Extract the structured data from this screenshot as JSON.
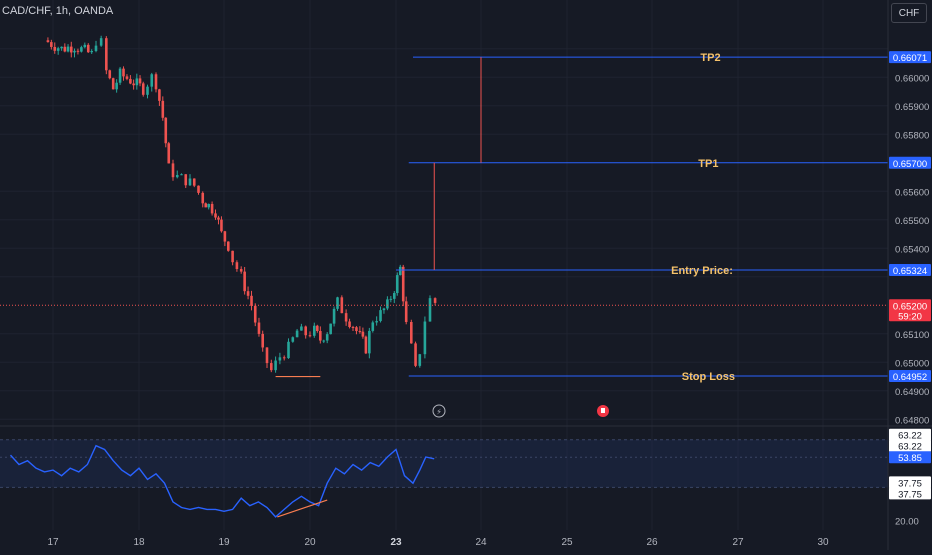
{
  "header": {
    "symbol": "CAD/CHF, 1h, OANDA",
    "currency_button": "CHF"
  },
  "colors": {
    "background": "#161a25",
    "bull": "#26a69a",
    "bear": "#ef5350",
    "level_line": "#2962ff",
    "level_text": "#f5c26b",
    "projection": "#ef5350",
    "price_tag_current": "#f23645",
    "rsi_line": "#2962ff",
    "rsi_band": "#1e2a4a",
    "axis_text": "#b2b5be"
  },
  "chart_data": [
    {
      "type": "candlestick",
      "title": "",
      "y_ticks": [
        "0.66100",
        "0.66000",
        "0.65900",
        "0.65800",
        "0.65600",
        "0.65500",
        "0.65400",
        "0.65300",
        "0.65100",
        "0.65000",
        "0.64900",
        "0.64800"
      ],
      "x_ticks": [
        "17",
        "18",
        "19",
        "20",
        "23",
        "24",
        "25",
        "26",
        "27",
        "30"
      ],
      "ylim": [
        0.6478,
        0.6618
      ],
      "close_path": [
        [
          16.9,
          0.6613
        ],
        [
          17.1,
          0.661
        ],
        [
          17.25,
          0.6611
        ],
        [
          17.45,
          0.6608
        ],
        [
          17.5,
          0.6613
        ],
        [
          17.56,
          0.6612
        ],
        [
          17.62,
          0.6602
        ],
        [
          17.7,
          0.6596
        ],
        [
          17.78,
          0.6601
        ],
        [
          17.9,
          0.6599
        ],
        [
          18.05,
          0.6596
        ],
        [
          18.15,
          0.66
        ],
        [
          18.2,
          0.6598
        ],
        [
          18.28,
          0.6586
        ],
        [
          18.35,
          0.6568
        ],
        [
          18.45,
          0.6565
        ],
        [
          18.55,
          0.6564
        ],
        [
          18.65,
          0.6562
        ],
        [
          18.75,
          0.6557
        ],
        [
          18.82,
          0.6555
        ],
        [
          18.9,
          0.6553
        ],
        [
          18.97,
          0.6545
        ],
        [
          19.05,
          0.6541
        ],
        [
          19.1,
          0.6536
        ],
        [
          19.2,
          0.653
        ],
        [
          19.32,
          0.652
        ],
        [
          19.45,
          0.6503
        ],
        [
          19.55,
          0.6497
        ],
        [
          19.65,
          0.6502
        ],
        [
          19.75,
          0.6505
        ],
        [
          19.85,
          0.6511
        ],
        [
          19.95,
          0.651
        ],
        [
          20.05,
          0.6511
        ],
        [
          20.12,
          0.6508
        ],
        [
          20.2,
          0.6511
        ],
        [
          20.32,
          0.6521
        ],
        [
          20.42,
          0.6516
        ],
        [
          20.5,
          0.6513
        ],
        [
          20.58,
          0.6509
        ],
        [
          20.65,
          0.6505
        ],
        [
          20.73,
          0.6515
        ],
        [
          20.82,
          0.6517
        ],
        [
          20.9,
          0.652
        ],
        [
          20.98,
          0.6526
        ],
        [
          21.05,
          0.6533
        ],
        [
          21.12,
          0.6513
        ],
        [
          21.18,
          0.6505
        ],
        [
          21.23,
          0.6497
        ],
        [
          21.28,
          0.6504
        ],
        [
          21.34,
          0.6515
        ],
        [
          21.4,
          0.6522
        ],
        [
          21.46,
          0.6521
        ]
      ],
      "current_price": 0.652,
      "levels": [
        {
          "label": "TP2",
          "price": 0.66071,
          "tag": "0.66071",
          "x_start": 23.2
        },
        {
          "label": "TP1",
          "price": 0.657,
          "tag": "0.65700",
          "x_start": 23.15
        },
        {
          "label": "Entry Price:",
          "price": 0.65324,
          "tag": "0.65324",
          "x_start": 23.0
        },
        {
          "label": "Stop Loss",
          "price": 0.64952,
          "tag": "0.64952",
          "x_start": 23.15
        }
      ],
      "current_tag": {
        "price": "0.65200",
        "countdown": "59:20"
      },
      "markers": [
        "lightning-icon",
        "calendar-event-icon"
      ]
    },
    {
      "type": "line",
      "title": "",
      "y_ticks": [
        "63.22",
        "53.85",
        "37.75",
        "20.00"
      ],
      "ylim": [
        15,
        70
      ],
      "band": [
        37.75,
        63.22
      ],
      "tags": [
        "63.22",
        "63.22",
        "53.85",
        "37.75",
        "37.75",
        "20.00"
      ],
      "series": [
        {
          "values": [
            [
              16.5,
              55
            ],
            [
              16.6,
              50
            ],
            [
              16.7,
              52
            ],
            [
              16.8,
              48
            ],
            [
              16.9,
              46
            ],
            [
              17.0,
              47
            ],
            [
              17.1,
              44
            ],
            [
              17.2,
              48
            ],
            [
              17.3,
              46
            ],
            [
              17.4,
              50
            ],
            [
              17.5,
              60
            ],
            [
              17.6,
              58
            ],
            [
              17.7,
              52
            ],
            [
              17.8,
              47
            ],
            [
              17.9,
              44
            ],
            [
              18.0,
              48
            ],
            [
              18.1,
              42
            ],
            [
              18.2,
              45
            ],
            [
              18.3,
              40
            ],
            [
              18.4,
              30
            ],
            [
              18.5,
              27
            ],
            [
              18.6,
              26
            ],
            [
              18.7,
              27
            ],
            [
              18.8,
              26
            ],
            [
              18.9,
              26
            ],
            [
              19.0,
              25
            ],
            [
              19.1,
              26
            ],
            [
              19.2,
              32
            ],
            [
              19.3,
              28
            ],
            [
              19.4,
              30
            ],
            [
              19.5,
              27
            ],
            [
              19.6,
              22
            ],
            [
              19.7,
              26
            ],
            [
              19.8,
              30
            ],
            [
              19.9,
              33
            ],
            [
              20.0,
              30
            ],
            [
              20.1,
              28
            ],
            [
              20.2,
              40
            ],
            [
              20.3,
              48
            ],
            [
              20.4,
              45
            ],
            [
              20.5,
              50
            ],
            [
              20.6,
              47
            ],
            [
              20.7,
              51
            ],
            [
              20.8,
              49
            ],
            [
              20.9,
              54
            ],
            [
              21.0,
              58
            ],
            [
              21.1,
              44
            ],
            [
              21.2,
              40
            ],
            [
              21.28,
              47
            ],
            [
              21.35,
              54
            ],
            [
              21.45,
              53
            ]
          ]
        }
      ]
    }
  ]
}
